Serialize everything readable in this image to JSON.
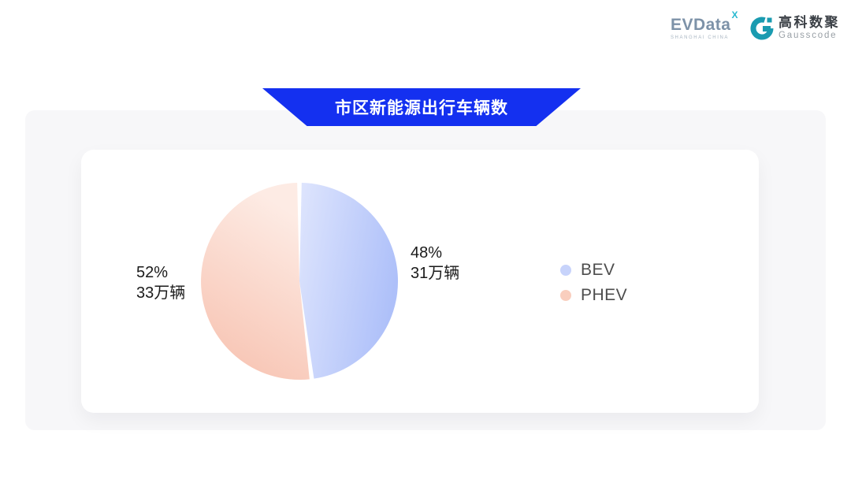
{
  "header": {
    "evdata": {
      "name": "EVData",
      "sup": "X",
      "subtext": "SHANGHAI CHINA",
      "color": "#7d92a8",
      "accent": "#29b9d0"
    },
    "gausscode": {
      "cn": "高科数聚",
      "en": "Gausscode",
      "icon_color": "#1a9bb0"
    }
  },
  "banner": {
    "title": "市区新能源出行车辆数",
    "color": "#1430f0",
    "text_color": "#ffffff"
  },
  "chart_data": {
    "type": "pie",
    "title": "市区新能源出行车辆数",
    "categories": [
      "BEV",
      "PHEV"
    ],
    "series": [
      {
        "name": "BEV",
        "percent": 48,
        "percent_label": "48%",
        "value_wan": 31,
        "value_label": "31万辆",
        "gradient": [
          "#dde4fd",
          "#aec0f9"
        ],
        "legend_color": "#c7d3fb"
      },
      {
        "name": "PHEV",
        "percent": 52,
        "percent_label": "52%",
        "value_wan": 33,
        "value_label": "33万辆",
        "gradient": [
          "#fdebe4",
          "#f7c0ae"
        ],
        "legend_color": "#f9cebe"
      }
    ],
    "unit": "万辆",
    "legend_position": "right",
    "start_angle": "top",
    "direction": "clockwise",
    "slice_gap_deg": 2.6
  }
}
